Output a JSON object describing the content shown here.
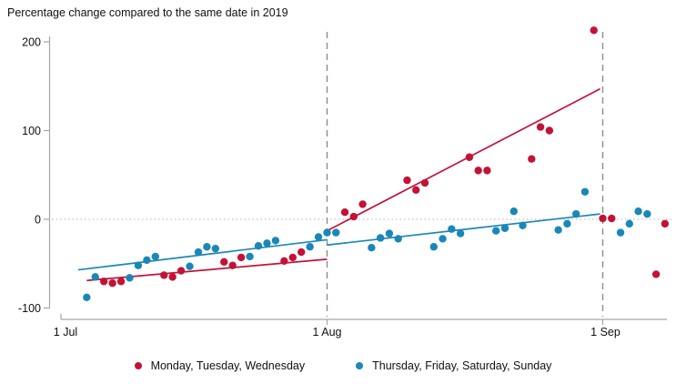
{
  "page": {
    "background": "#ffffff"
  },
  "chart_data": {
    "type": "scatter",
    "title": "Percentage change compared to the same date in 2019",
    "colors": {
      "red_series": "#c41237",
      "blue_series": "#1a87b8",
      "axis": "#a6a6a6",
      "dashed_reference": "#8c8c8c",
      "zero_dotted": "#c2c2c2",
      "text": "#111111"
    },
    "x_axis": {
      "tick_labels": [
        "1 Jul",
        "1 Aug",
        "1 Sep"
      ],
      "tick_days": [
        1,
        32,
        63
      ],
      "note": "day index: 1 = 1 Jul, 32 = 1 Aug, 63 = 1 Sep, 70 = 8 Sep"
    },
    "y_axis": {
      "tick_labels": [
        "200",
        "100",
        "0",
        "-100"
      ],
      "tick_values": [
        200,
        100,
        0,
        -100
      ],
      "range": [
        -100,
        220
      ],
      "zero_reference_line": "dotted"
    },
    "reference_lines": {
      "vertical_dashed_days": [
        32,
        63
      ],
      "vertical_dashed_labels": [
        "1 Aug",
        "1 Sep"
      ]
    },
    "legend": {
      "position": "bottom-center",
      "entries": [
        "Monday, Tuesday, Wednesday",
        "Thursday, Friday, Saturday, Sunday"
      ]
    },
    "series": [
      {
        "name": "Monday, Tuesday, Wednesday",
        "color": "#c41237",
        "points": [
          {
            "date": "6 Jul",
            "day": 6,
            "value": -70
          },
          {
            "date": "7 Jul",
            "day": 7,
            "value": -72
          },
          {
            "date": "8 Jul",
            "day": 8,
            "value": -70
          },
          {
            "date": "13 Jul",
            "day": 13,
            "value": -63
          },
          {
            "date": "14 Jul",
            "day": 14,
            "value": -65
          },
          {
            "date": "15 Jul",
            "day": 15,
            "value": -58
          },
          {
            "date": "20 Jul",
            "day": 20,
            "value": -48
          },
          {
            "date": "21 Jul",
            "day": 21,
            "value": -52
          },
          {
            "date": "22 Jul",
            "day": 22,
            "value": -43
          },
          {
            "date": "27 Jul",
            "day": 27,
            "value": -47
          },
          {
            "date": "28 Jul",
            "day": 28,
            "value": -43
          },
          {
            "date": "29 Jul",
            "day": 29,
            "value": -37
          },
          {
            "date": "3 Aug",
            "day": 34,
            "value": 8
          },
          {
            "date": "4 Aug",
            "day": 35,
            "value": 3
          },
          {
            "date": "5 Aug",
            "day": 36,
            "value": 17
          },
          {
            "date": "10 Aug",
            "day": 41,
            "value": 44
          },
          {
            "date": "11 Aug",
            "day": 42,
            "value": 33
          },
          {
            "date": "12 Aug",
            "day": 43,
            "value": 41
          },
          {
            "date": "17 Aug",
            "day": 48,
            "value": 70
          },
          {
            "date": "18 Aug",
            "day": 49,
            "value": 55
          },
          {
            "date": "19 Aug",
            "day": 50,
            "value": 55
          },
          {
            "date": "24 Aug",
            "day": 55,
            "value": 68
          },
          {
            "date": "25 Aug",
            "day": 56,
            "value": 104
          },
          {
            "date": "26 Aug",
            "day": 57,
            "value": 100
          },
          {
            "date": "31 Aug",
            "day": 62,
            "value": 213
          },
          {
            "date": "1 Sep",
            "day": 63,
            "value": 1
          },
          {
            "date": "2 Sep",
            "day": 64,
            "value": 1
          },
          {
            "date": "7 Sep",
            "day": 69,
            "value": -62
          },
          {
            "date": "8 Sep",
            "day": 70,
            "value": -5
          }
        ]
      },
      {
        "name": "Thursday, Friday, Saturday, Sunday",
        "color": "#1a87b8",
        "points": [
          {
            "date": "4 Jul",
            "day": 4,
            "value": -88
          },
          {
            "date": "5 Jul",
            "day": 5,
            "value": -65
          },
          {
            "date": "9 Jul",
            "day": 9,
            "value": -66
          },
          {
            "date": "10 Jul",
            "day": 10,
            "value": -52
          },
          {
            "date": "11 Jul",
            "day": 11,
            "value": -46
          },
          {
            "date": "12 Jul",
            "day": 12,
            "value": -42
          },
          {
            "date": "16 Jul",
            "day": 16,
            "value": -53
          },
          {
            "date": "17 Jul",
            "day": 17,
            "value": -37
          },
          {
            "date": "18 Jul",
            "day": 18,
            "value": -31
          },
          {
            "date": "19 Jul",
            "day": 19,
            "value": -33
          },
          {
            "date": "23 Jul",
            "day": 23,
            "value": -42
          },
          {
            "date": "24 Jul",
            "day": 24,
            "value": -30
          },
          {
            "date": "25 Jul",
            "day": 25,
            "value": -27
          },
          {
            "date": "26 Jul",
            "day": 26,
            "value": -24
          },
          {
            "date": "30 Jul",
            "day": 30,
            "value": -31
          },
          {
            "date": "31 Jul",
            "day": 31,
            "value": -20
          },
          {
            "date": "1 Aug",
            "day": 32,
            "value": -15
          },
          {
            "date": "2 Aug",
            "day": 33,
            "value": -15
          },
          {
            "date": "6 Aug",
            "day": 37,
            "value": -32
          },
          {
            "date": "7 Aug",
            "day": 38,
            "value": -21
          },
          {
            "date": "8 Aug",
            "day": 39,
            "value": -16
          },
          {
            "date": "9 Aug",
            "day": 40,
            "value": -22
          },
          {
            "date": "13 Aug",
            "day": 44,
            "value": -31
          },
          {
            "date": "14 Aug",
            "day": 45,
            "value": -22
          },
          {
            "date": "15 Aug",
            "day": 46,
            "value": -11
          },
          {
            "date": "16 Aug",
            "day": 47,
            "value": -16
          },
          {
            "date": "20 Aug",
            "day": 51,
            "value": -13
          },
          {
            "date": "21 Aug",
            "day": 52,
            "value": -10
          },
          {
            "date": "22 Aug",
            "day": 53,
            "value": 9
          },
          {
            "date": "23 Aug",
            "day": 54,
            "value": -7
          },
          {
            "date": "27 Aug",
            "day": 58,
            "value": -12
          },
          {
            "date": "28 Aug",
            "day": 59,
            "value": -5
          },
          {
            "date": "29 Aug",
            "day": 60,
            "value": 6
          },
          {
            "date": "30 Aug",
            "day": 61,
            "value": 31
          },
          {
            "date": "3 Sep",
            "day": 65,
            "value": -15
          },
          {
            "date": "4 Sep",
            "day": 66,
            "value": -5
          },
          {
            "date": "5 Sep",
            "day": 67,
            "value": 9
          },
          {
            "date": "6 Sep",
            "day": 68,
            "value": 6
          }
        ]
      }
    ],
    "trend_lines": [
      {
        "series": "Monday, Tuesday, Wednesday",
        "period": "July",
        "from_day": 4,
        "from_value": -69,
        "to_day": 32,
        "to_value": -45
      },
      {
        "series": "Monday, Tuesday, Wednesday",
        "period": "August",
        "from_day": 32,
        "from_value": -13,
        "to_day": 62.7,
        "to_value": 147
      },
      {
        "series": "Thursday, Friday, Saturday, Sunday",
        "period": "July",
        "from_day": 3,
        "from_value": -57,
        "to_day": 32,
        "to_value": -23
      },
      {
        "series": "Thursday, Friday, Saturday, Sunday",
        "period": "August",
        "from_day": 32,
        "from_value": -29,
        "to_day": 62.7,
        "to_value": 6
      }
    ]
  }
}
